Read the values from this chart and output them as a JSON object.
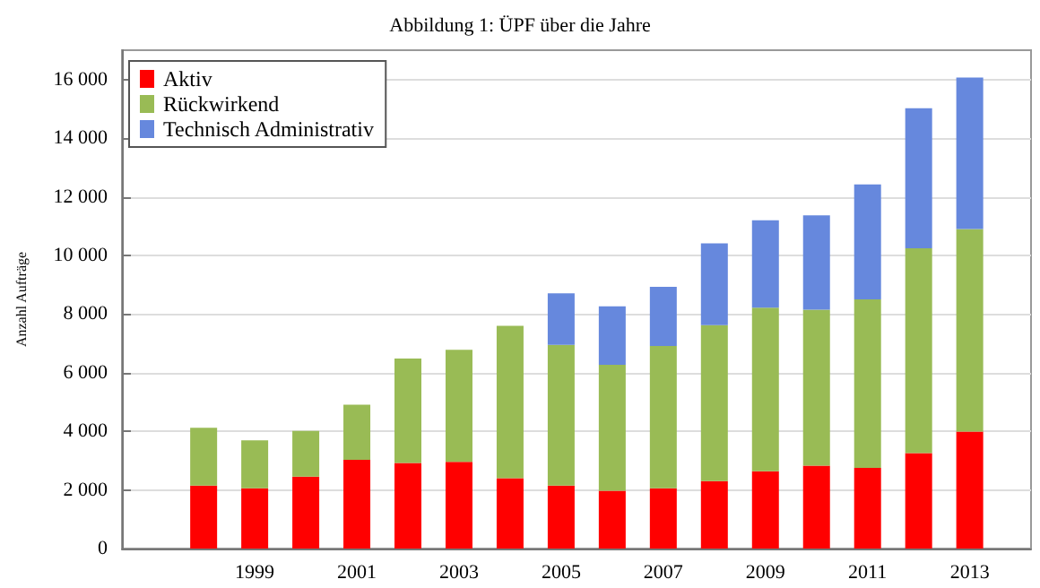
{
  "chart_data": {
    "type": "bar",
    "stacked": true,
    "title": "Abbildung 1: ÜPF über die Jahre",
    "ylabel": "Anzahl Aufträge",
    "x": [
      1998,
      1999,
      2000,
      2001,
      2002,
      2003,
      2004,
      2005,
      2006,
      2007,
      2008,
      2009,
      2010,
      2011,
      2012,
      2013
    ],
    "series": [
      {
        "name": "Aktiv",
        "color": "#ff0000",
        "values": [
          2150,
          2060,
          2450,
          3030,
          2920,
          2960,
          2400,
          2150,
          1970,
          2060,
          2300,
          2640,
          2830,
          2750,
          3260,
          3990
        ]
      },
      {
        "name": "Rückwirkend",
        "color": "#99bb55",
        "values": [
          1970,
          1630,
          1560,
          1880,
          3560,
          3820,
          5200,
          4800,
          4300,
          4850,
          5320,
          5580,
          5320,
          5750,
          6980,
          6910
        ]
      },
      {
        "name": "Technisch Administrativ",
        "color": "#6688dd",
        "values": [
          null,
          null,
          null,
          null,
          null,
          null,
          null,
          1760,
          1990,
          2020,
          2790,
          2980,
          3220,
          3920,
          4780,
          5170
        ]
      }
    ],
    "xlim": [
      1996.4,
      2014.2
    ],
    "xticks": [
      1999,
      2001,
      2003,
      2005,
      2007,
      2009,
      2011,
      2013
    ],
    "ylim": [
      0,
      17000
    ],
    "yticks": [
      0,
      {
        "value": 2000,
        "label": "2 000"
      },
      {
        "value": 4000,
        "label": "4 000"
      },
      {
        "value": 6000,
        "label": "6 000"
      },
      {
        "value": 8000,
        "label": "8 000"
      },
      {
        "value": 10000,
        "label": "10 000"
      },
      {
        "value": 12000,
        "label": "12 000"
      },
      {
        "value": 14000,
        "label": "14 000"
      },
      {
        "value": 16000,
        "label": "16 000"
      }
    ],
    "grid": "y",
    "legend": "top left"
  }
}
